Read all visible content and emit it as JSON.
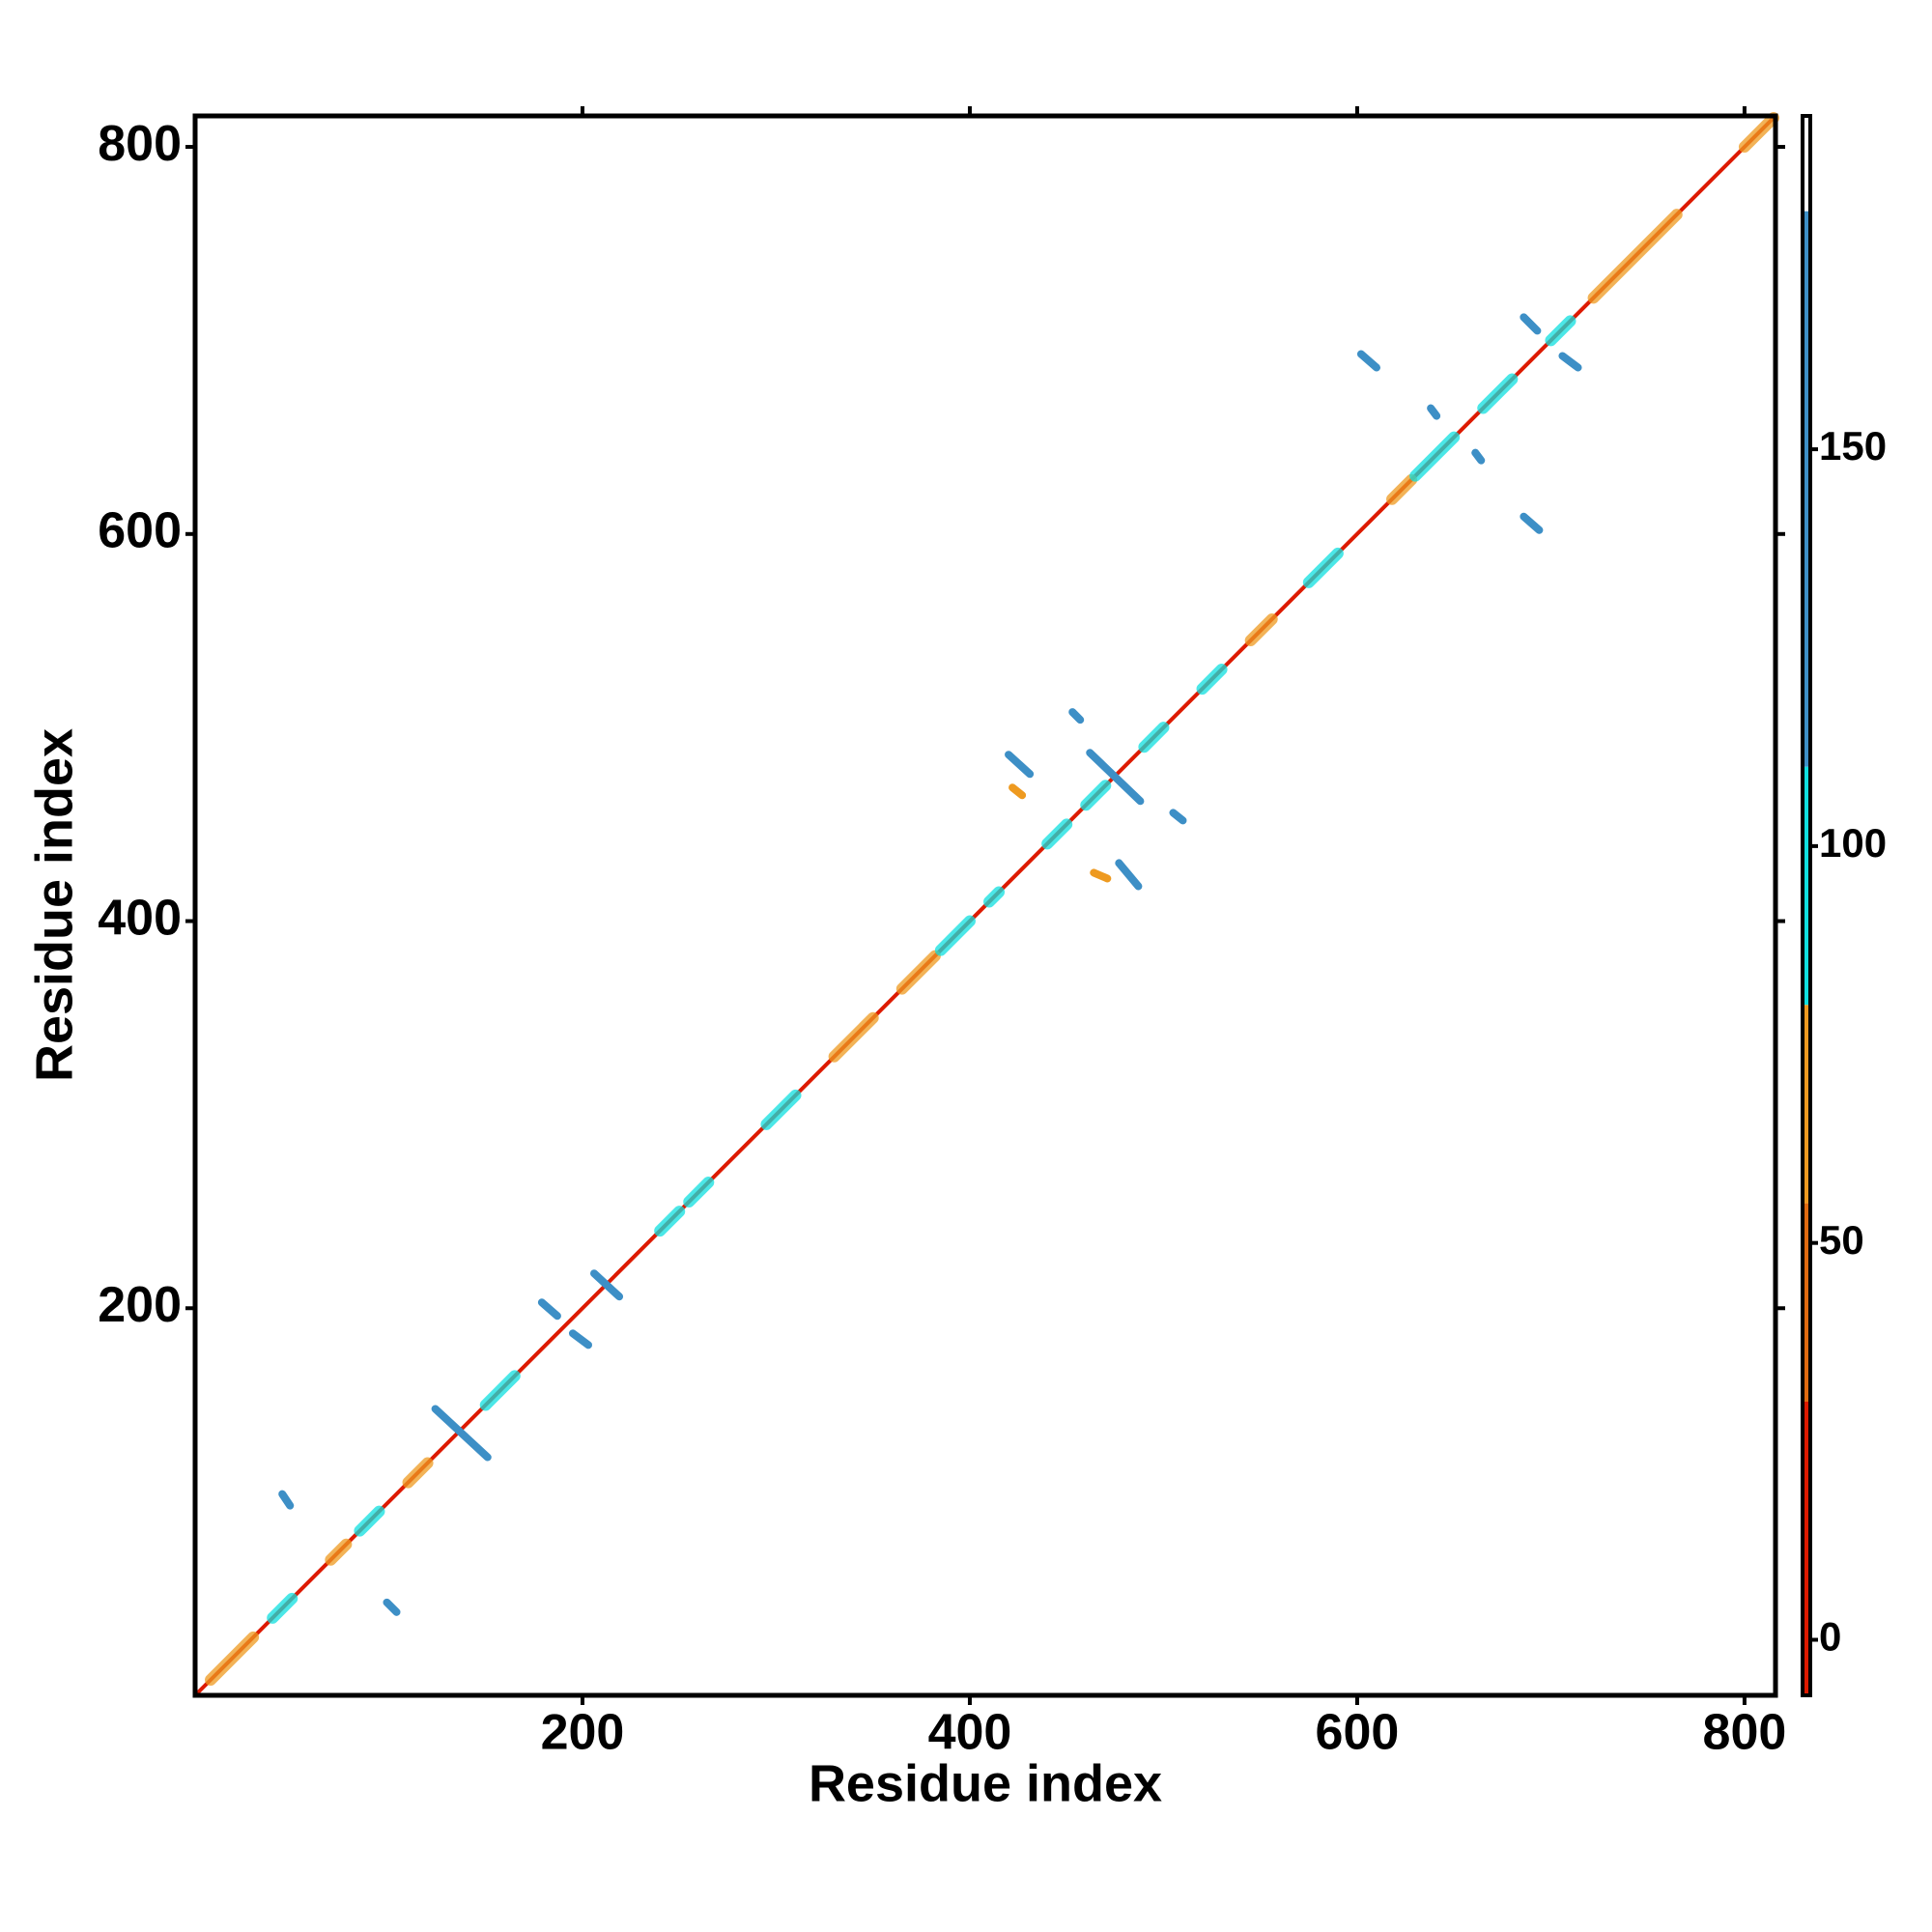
{
  "chart_data": {
    "type": "contact-map",
    "xlabel": "Residue index",
    "ylabel": "Residue index",
    "xlim": [
      0,
      816
    ],
    "ylim": [
      0,
      816
    ],
    "xticks": [
      200,
      400,
      600,
      800
    ],
    "yticks": [
      200,
      400,
      600,
      800
    ],
    "contacts": {
      "x1": [
        1,
        8,
        70,
        110,
        330,
        365,
        545,
        618,
        722,
        800,
        40,
        85,
        150,
        240,
        255,
        295,
        385,
        410,
        440,
        460,
        490,
        520,
        575,
        630,
        665,
        700,
        45,
        99,
        124,
        179,
        195,
        206,
        420,
        453,
        462,
        505,
        477,
        602,
        638,
        661,
        686,
        706,
        686,
        422,
        464
      ],
      "x2": [
        815,
        30,
        78,
        120,
        350,
        382,
        556,
        628,
        765,
        815,
        50,
        95,
        165,
        250,
        265,
        310,
        400,
        415,
        450,
        470,
        500,
        530,
        590,
        650,
        680,
        710,
        49,
        104,
        151,
        187,
        203,
        219,
        431,
        457,
        488,
        510,
        487,
        610,
        641,
        664,
        693,
        714,
        694,
        427,
        471
      ],
      "y1": [
        1,
        8,
        70,
        110,
        330,
        365,
        545,
        618,
        722,
        800,
        40,
        85,
        150,
        240,
        255,
        295,
        385,
        410,
        440,
        460,
        490,
        520,
        575,
        630,
        665,
        700,
        104,
        48,
        148,
        203,
        187,
        218,
        486,
        508,
        487,
        456,
        430,
        693,
        665,
        642,
        712,
        692,
        609,
        469,
        425
      ],
      "y2": [
        815,
        30,
        78,
        120,
        350,
        382,
        556,
        628,
        765,
        815,
        50,
        95,
        165,
        250,
        265,
        310,
        400,
        415,
        450,
        470,
        500,
        530,
        590,
        650,
        680,
        710,
        98,
        43,
        123,
        196,
        181,
        206,
        476,
        504,
        462,
        452,
        418,
        686,
        661,
        638,
        705,
        686,
        602,
        465,
        422
      ],
      "values": [
        5,
        60,
        60,
        60,
        60,
        60,
        60,
        60,
        60,
        60,
        90,
        90,
        90,
        90,
        90,
        90,
        90,
        90,
        90,
        90,
        90,
        90,
        90,
        90,
        90,
        90,
        140,
        140,
        140,
        140,
        140,
        140,
        140,
        140,
        140,
        140,
        140,
        140,
        140,
        140,
        140,
        140,
        140,
        60,
        60
      ]
    },
    "colorbar": {
      "lim": [
        -7,
        192
      ],
      "ticks": [
        0,
        50,
        100,
        150
      ],
      "bands": [
        {
          "from": -7,
          "to": 30,
          "color": "#dd1a00"
        },
        {
          "from": 30,
          "to": 55,
          "color": "#e06a10"
        },
        {
          "from": 55,
          "to": 80,
          "color": "#ee9a20"
        },
        {
          "from": 80,
          "to": 110,
          "color": "#10e0e0"
        },
        {
          "from": 110,
          "to": 180,
          "color": "#3d8fc6"
        },
        {
          "from": 180,
          "to": 192,
          "color": "#ffffff"
        }
      ]
    }
  }
}
